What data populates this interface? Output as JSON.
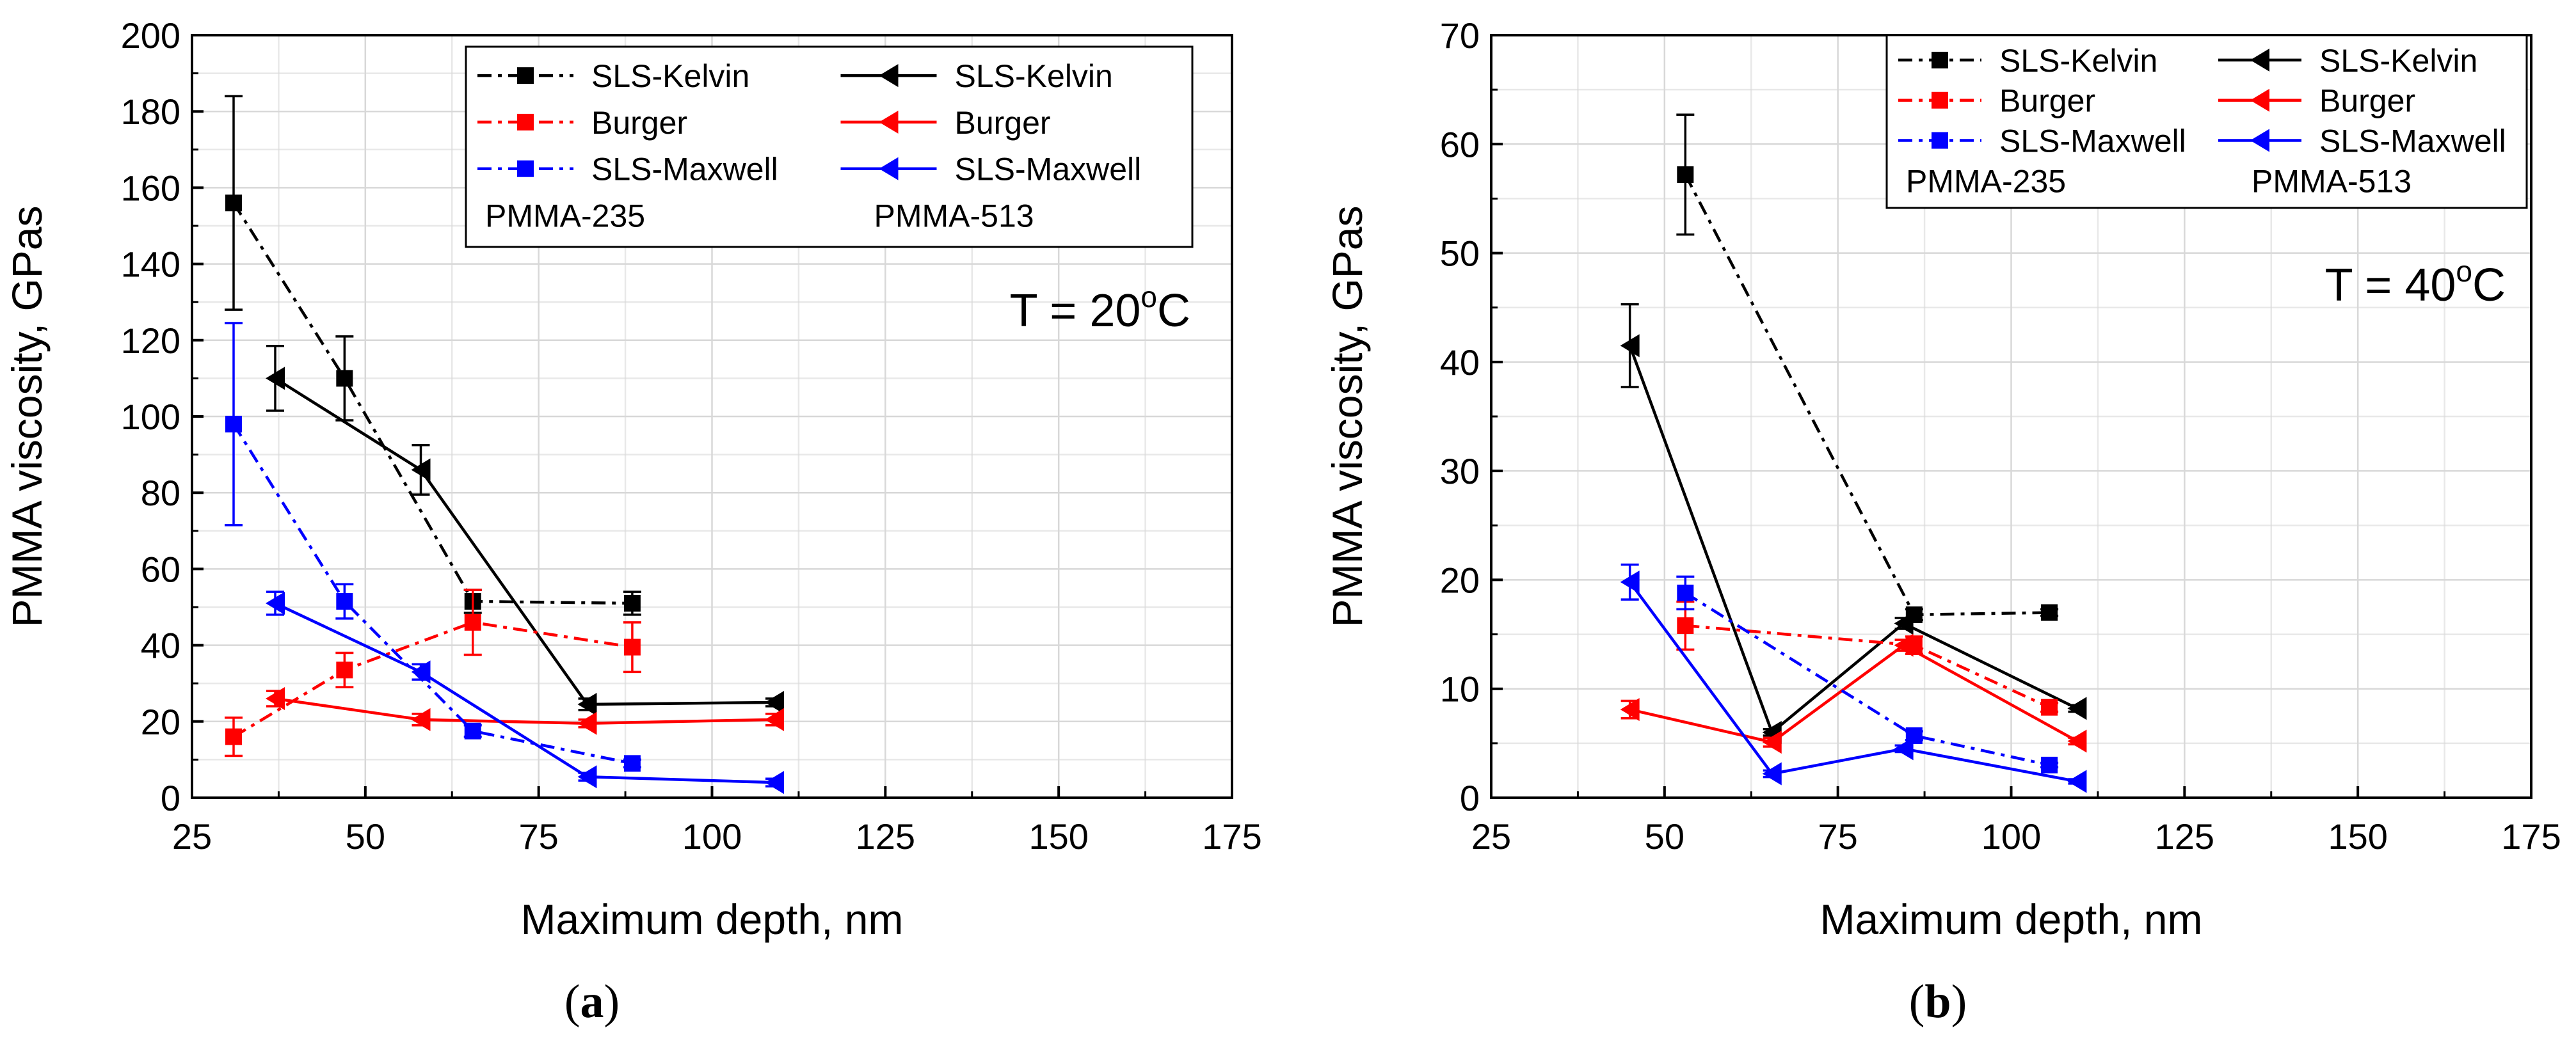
{
  "chart_data": [
    {
      "type": "line",
      "panel_label": "a",
      "xlabel": "Maximum depth, nm",
      "ylabel": "PMMA viscosity, GPas",
      "xlim": [
        25,
        175
      ],
      "ylim": [
        0,
        200
      ],
      "xticks": [
        25,
        50,
        75,
        100,
        125,
        150,
        175
      ],
      "yticks": [
        0,
        20,
        40,
        60,
        80,
        100,
        120,
        140,
        160,
        180,
        200
      ],
      "grid": true,
      "annotation": {
        "prefix": "T = 20",
        "sup": "o",
        "suffix": "C"
      },
      "legend": {
        "position": "top-right",
        "group_labels": [
          "PMMA-235",
          "PMMA-513"
        ],
        "entries": [
          {
            "label": "SLS-Kelvin",
            "color": "#000000",
            "marker": "square",
            "dash": "dashdot"
          },
          {
            "label": "SLS-Kelvin",
            "color": "#000000",
            "marker": "tri-left",
            "dash": "solid"
          },
          {
            "label": "Burger",
            "color": "#ff0000",
            "marker": "square",
            "dash": "dashdot"
          },
          {
            "label": "Burger",
            "color": "#ff0000",
            "marker": "tri-left",
            "dash": "solid"
          },
          {
            "label": "SLS-Maxwell",
            "color": "#0000ff",
            "marker": "square",
            "dash": "dashdot"
          },
          {
            "label": "SLS-Maxwell",
            "color": "#0000ff",
            "marker": "tri-left",
            "dash": "solid"
          }
        ]
      },
      "series": [
        {
          "name": "SLS-Kelvin (PMMA-235)",
          "color": "#000000",
          "marker": "square",
          "dash": "dashdot",
          "x": [
            31,
            47,
            65.5,
            88.5
          ],
          "y": [
            156,
            110,
            51.5,
            51
          ],
          "err": [
            28,
            11,
            3,
            3
          ]
        },
        {
          "name": "SLS-Kelvin (PMMA-513)",
          "color": "#000000",
          "marker": "tri-left",
          "dash": "solid",
          "x": [
            37,
            58,
            82,
            109
          ],
          "y": [
            110,
            86,
            24.5,
            25
          ],
          "err": [
            8.5,
            6.5,
            1.5,
            1
          ]
        },
        {
          "name": "Burger (PMMA-235)",
          "color": "#ff0000",
          "marker": "square",
          "dash": "dashdot",
          "x": [
            31,
            47,
            65.5,
            88.5
          ],
          "y": [
            16,
            33.5,
            46,
            39.5
          ],
          "err": [
            5,
            4.5,
            8.5,
            6.5
          ]
        },
        {
          "name": "Burger (PMMA-513)",
          "color": "#ff0000",
          "marker": "tri-left",
          "dash": "solid",
          "x": [
            37,
            58,
            82,
            109
          ],
          "y": [
            26,
            20.5,
            19.5,
            20.5
          ],
          "err": [
            2,
            1.5,
            1,
            1.5
          ]
        },
        {
          "name": "SLS-Maxwell (PMMA-235)",
          "color": "#0000ff",
          "marker": "square",
          "dash": "dashdot",
          "x": [
            31,
            47,
            65.5,
            88.5
          ],
          "y": [
            98,
            51.5,
            17.5,
            9
          ],
          "err": [
            26.5,
            4.5,
            1.5,
            1
          ]
        },
        {
          "name": "SLS-Maxwell (PMMA-513)",
          "color": "#0000ff",
          "marker": "tri-left",
          "dash": "solid",
          "x": [
            37,
            58,
            82,
            109
          ],
          "y": [
            51,
            33,
            5.5,
            4
          ],
          "err": [
            3,
            2,
            1,
            1
          ]
        }
      ]
    },
    {
      "type": "line",
      "panel_label": "b",
      "xlabel": "Maximum depth, nm",
      "ylabel": "PMMA viscosity, GPas",
      "xlim": [
        25,
        175
      ],
      "ylim": [
        0,
        70
      ],
      "xticks": [
        25,
        50,
        75,
        100,
        125,
        150,
        175
      ],
      "yticks": [
        0,
        10,
        20,
        30,
        40,
        50,
        60,
        70
      ],
      "grid": true,
      "annotation": {
        "prefix": "T = 40",
        "sup": "o",
        "suffix": "C"
      },
      "legend": {
        "position": "top-right",
        "group_labels": [
          "PMMA-235",
          "PMMA-513"
        ],
        "entries": [
          {
            "label": "SLS-Kelvin",
            "color": "#000000",
            "marker": "square",
            "dash": "dashdot"
          },
          {
            "label": "SLS-Kelvin",
            "color": "#000000",
            "marker": "tri-left",
            "dash": "solid"
          },
          {
            "label": "Burger",
            "color": "#ff0000",
            "marker": "square",
            "dash": "dashdot"
          },
          {
            "label": "Burger",
            "color": "#ff0000",
            "marker": "tri-left",
            "dash": "solid"
          },
          {
            "label": "SLS-Maxwell",
            "color": "#0000ff",
            "marker": "square",
            "dash": "dashdot"
          },
          {
            "label": "SLS-Maxwell",
            "color": "#0000ff",
            "marker": "tri-left",
            "dash": "solid"
          }
        ]
      },
      "series": [
        {
          "name": "SLS-Kelvin (PMMA-235)",
          "color": "#000000",
          "marker": "square",
          "dash": "dashdot",
          "x": [
            53,
            86,
            105.5
          ],
          "y": [
            57.2,
            16.8,
            17
          ],
          "err": [
            5.5,
            0.5,
            0.3
          ]
        },
        {
          "name": "SLS-Kelvin (PMMA-513)",
          "color": "#000000",
          "marker": "tri-left",
          "dash": "solid",
          "x": [
            45,
            65.5,
            84.5,
            109.5
          ],
          "y": [
            41.5,
            6,
            16,
            8.2
          ],
          "err": [
            3.8,
            0.3,
            0.5,
            0.3
          ]
        },
        {
          "name": "Burger (PMMA-235)",
          "color": "#ff0000",
          "marker": "square",
          "dash": "dashdot",
          "x": [
            53,
            86,
            105.5
          ],
          "y": [
            15.8,
            14,
            8.3
          ],
          "err": [
            2.2,
            0.8,
            0.4
          ]
        },
        {
          "name": "Burger (PMMA-513)",
          "color": "#ff0000",
          "marker": "tri-left",
          "dash": "solid",
          "x": [
            45,
            65.5,
            84.5,
            109.5
          ],
          "y": [
            8.1,
            5.1,
            14,
            5.2
          ],
          "err": [
            0.8,
            0.4,
            0.5,
            0.3
          ]
        },
        {
          "name": "SLS-Maxwell (PMMA-235)",
          "color": "#0000ff",
          "marker": "square",
          "dash": "dashdot",
          "x": [
            53,
            86,
            105.5
          ],
          "y": [
            18.8,
            5.7,
            3
          ],
          "err": [
            1.5,
            0.4,
            0.2
          ]
        },
        {
          "name": "SLS-Maxwell (PMMA-513)",
          "color": "#0000ff",
          "marker": "tri-left",
          "dash": "solid",
          "x": [
            45,
            65.5,
            84.5,
            109.5
          ],
          "y": [
            19.8,
            2.2,
            4.5,
            1.5
          ],
          "err": [
            1.6,
            0.3,
            0.3,
            0.2
          ]
        }
      ]
    }
  ]
}
